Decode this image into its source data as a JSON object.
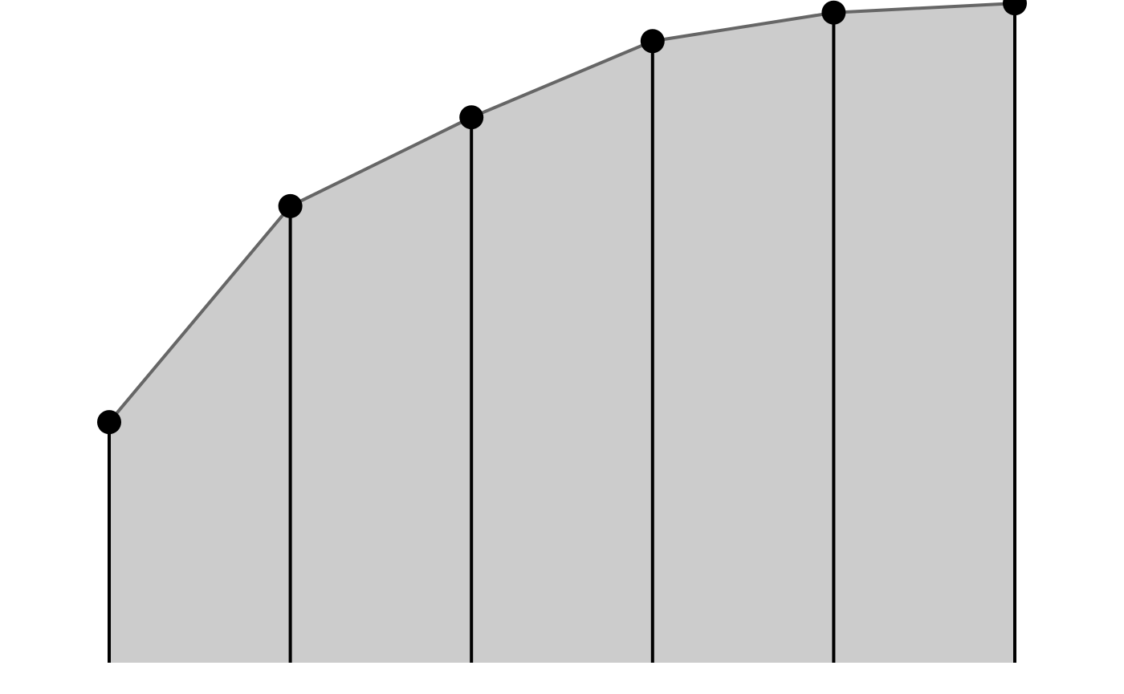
{
  "chart_data": {
    "type": "area",
    "title": "",
    "xlabel": "",
    "ylabel": "",
    "x": [
      1,
      2,
      3,
      4,
      5,
      6
    ],
    "values": [
      0.363,
      0.689,
      0.823,
      0.938,
      0.981,
      0.995
    ],
    "xlim": [
      1,
      6
    ],
    "ylim": [
      0,
      1.0
    ],
    "grid": false,
    "legend": "none",
    "show_stems": true,
    "show_markers": true,
    "colors": {
      "fill": "#cccccc",
      "line": "#666666",
      "stem": "#000000",
      "marker": "#000000",
      "background": "#ffffff"
    }
  }
}
